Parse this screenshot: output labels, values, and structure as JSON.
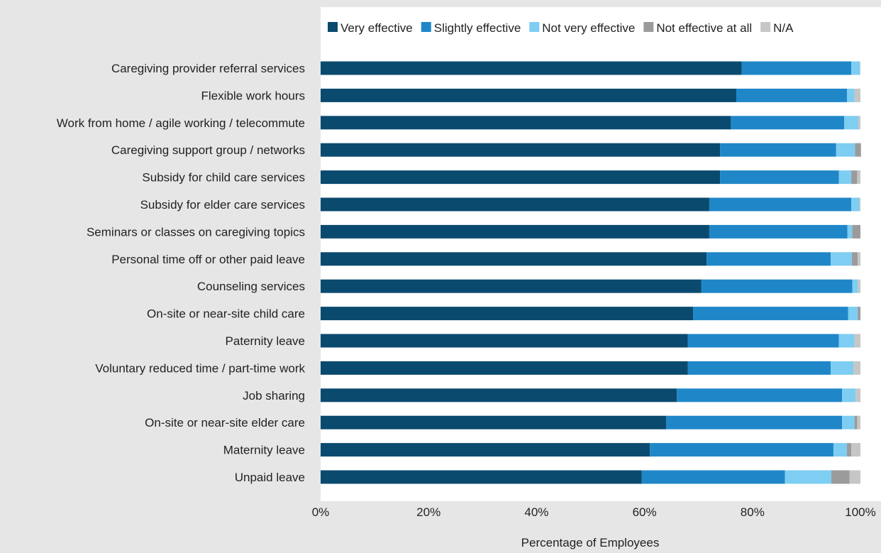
{
  "chart_data": {
    "type": "bar",
    "orientation": "horizontal",
    "stacked": true,
    "xlabel": "Percentage of Employees",
    "ylabel": "",
    "xlim": [
      0,
      100
    ],
    "x_ticks": [
      "0%",
      "20%",
      "40%",
      "60%",
      "80%",
      "100%"
    ],
    "x_tick_values": [
      0,
      20,
      40,
      60,
      80,
      100
    ],
    "legend_position": "top",
    "grid": false,
    "categories": [
      "Caregiving provider referral services",
      "Flexible work hours",
      "Work from home / agile working / telecommute",
      "Caregiving support group / networks",
      "Subsidy for child care services",
      "Subsidy for elder care services",
      "Seminars or classes on caregiving topics",
      "Personal time off or other paid leave",
      "Counseling services",
      "On-site or near-site child care",
      "Paternity leave",
      "Voluntary reduced time / part-time work",
      "Job sharing",
      "On-site or near-site elder care",
      "Maternity leave",
      "Unpaid leave"
    ],
    "series": [
      {
        "name": "Very effective",
        "color": "#0b4a6f",
        "values": [
          78,
          77,
          76,
          74,
          74,
          72,
          72,
          71.5,
          70.5,
          69,
          68,
          68,
          66,
          64,
          61,
          59.5
        ]
      },
      {
        "name": "Slightly effective",
        "color": "#1f87c8",
        "values": [
          20.3,
          20.5,
          21,
          21.5,
          22,
          26.3,
          25.6,
          23,
          28,
          28.7,
          28,
          26.5,
          30.6,
          32.6,
          34,
          26.5
        ]
      },
      {
        "name": "Not very effective",
        "color": "#7ecdf2",
        "values": [
          1.6,
          1.4,
          2.6,
          3.5,
          2.3,
          1.5,
          0.9,
          3.9,
          1,
          1.8,
          2.9,
          4.2,
          2.5,
          2.3,
          2.5,
          8.6
        ]
      },
      {
        "name": "Not effective at all",
        "color": "#9b9b9b",
        "values": [
          0,
          0,
          0,
          1.1,
          1.1,
          0,
          1.5,
          1.1,
          0,
          0.5,
          0,
          0,
          0,
          0.5,
          0.8,
          3.4
        ]
      },
      {
        "name": "N/A",
        "color": "#c6c6c6",
        "values": [
          0.1,
          1.1,
          0.4,
          0,
          0.6,
          0.2,
          0,
          0.5,
          0.5,
          0,
          1.1,
          1.3,
          0.9,
          0.6,
          1.7,
          2
        ]
      }
    ]
  }
}
